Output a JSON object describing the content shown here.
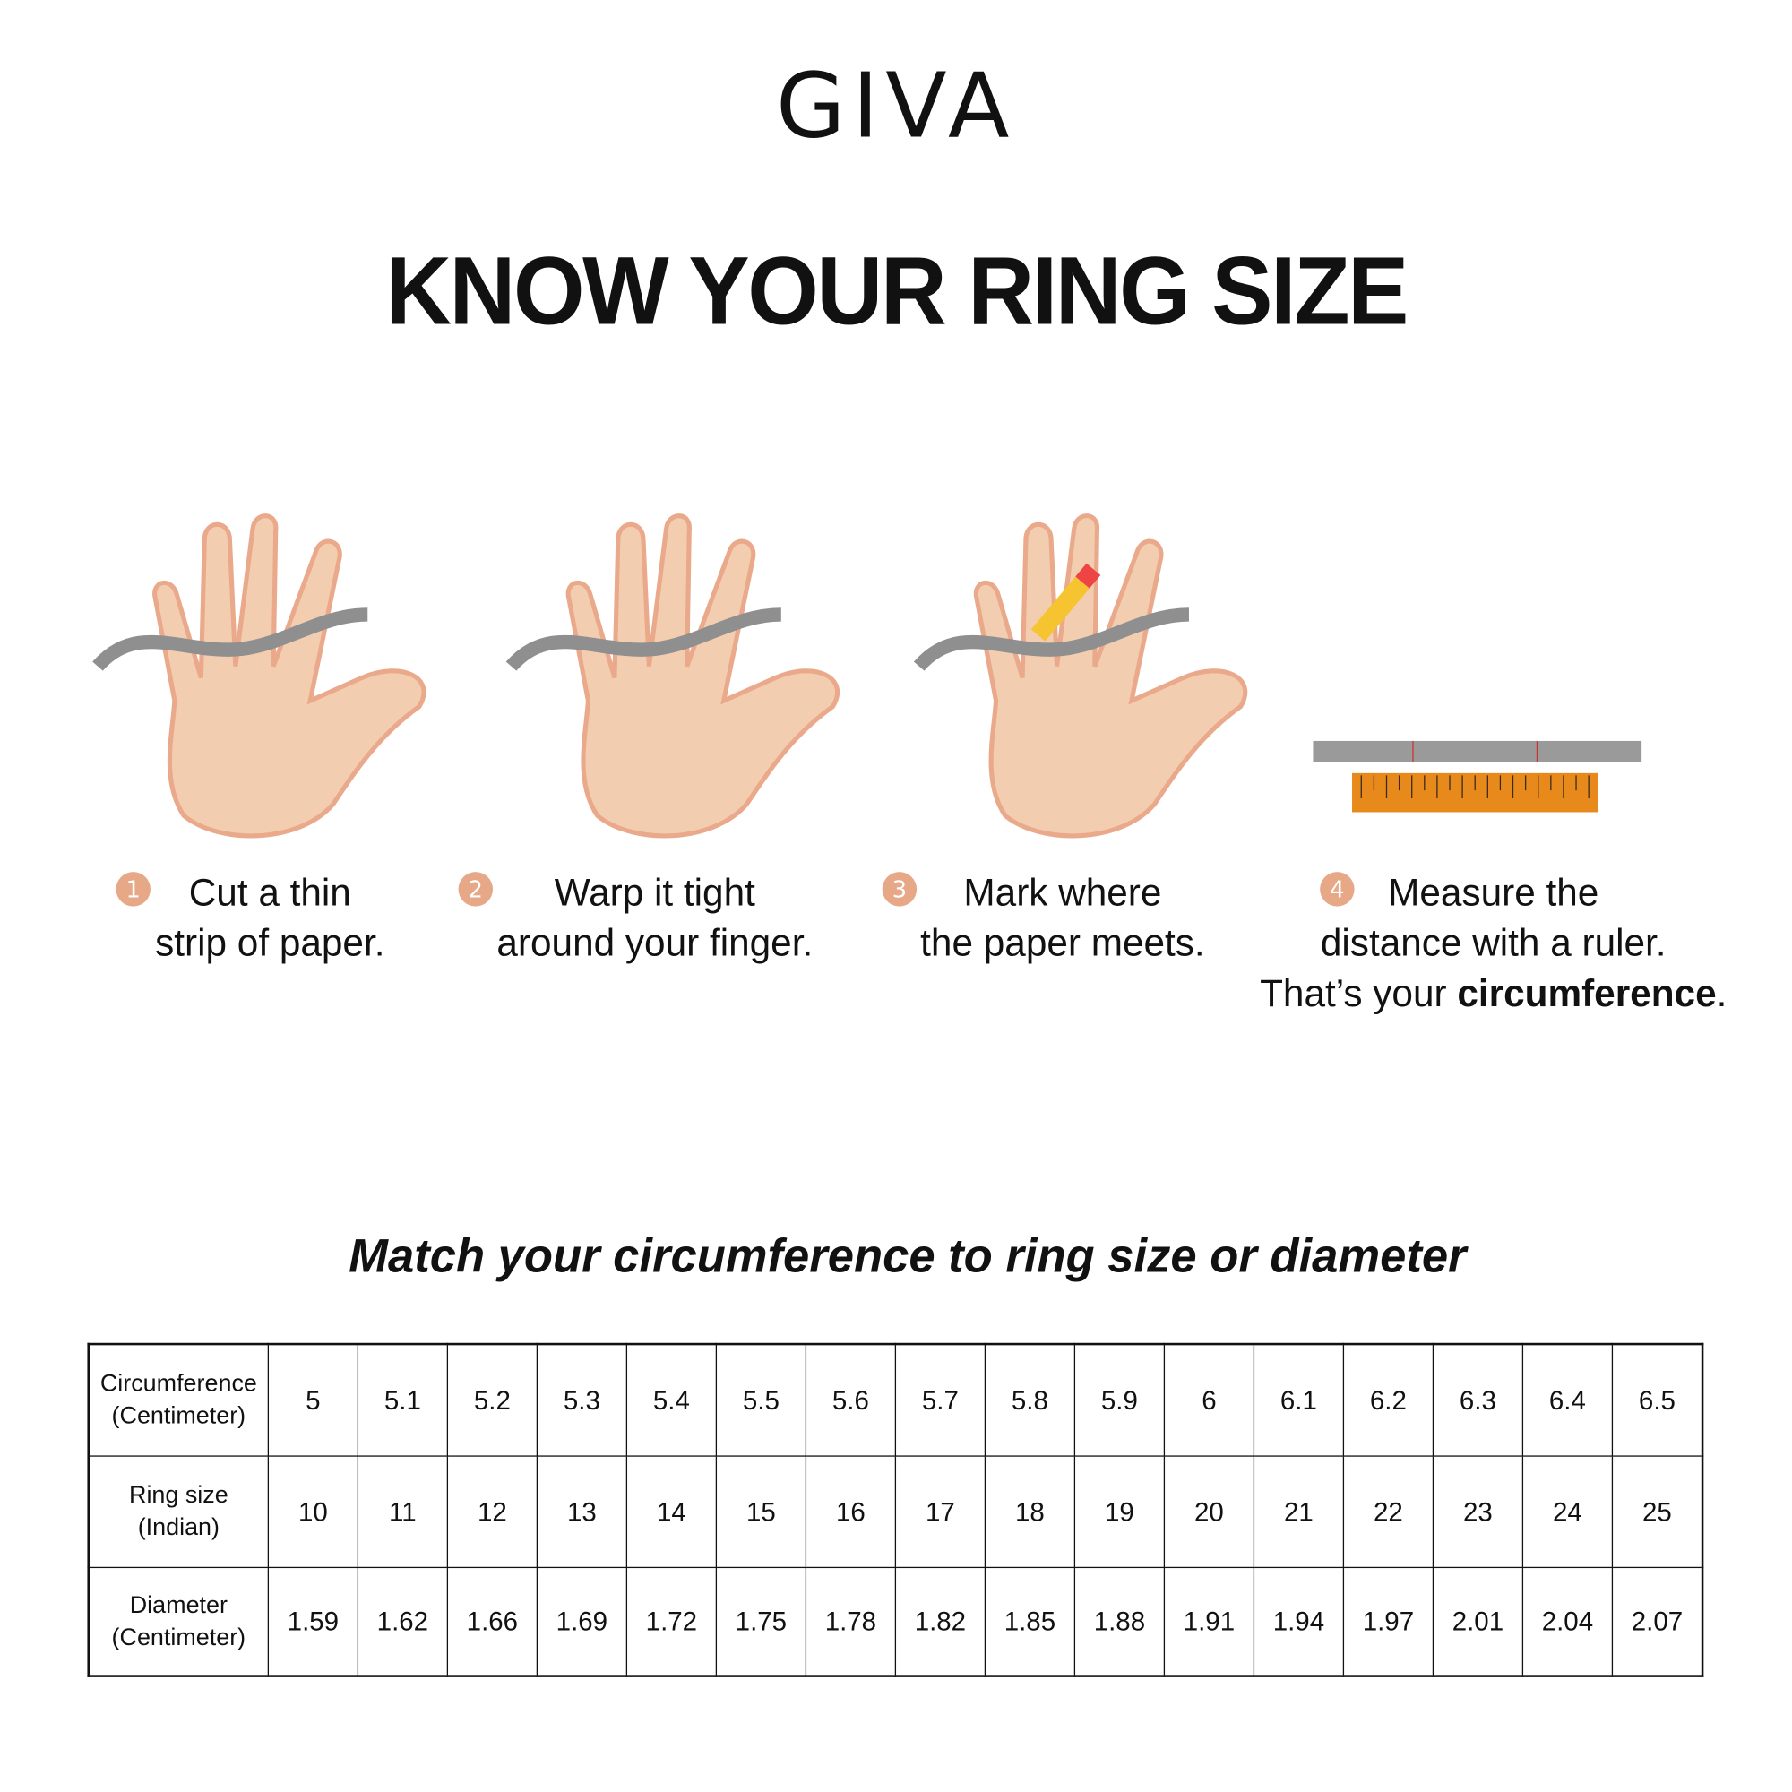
{
  "brand": "GIVA",
  "title": "KNOW YOUR RING SIZE",
  "steps": [
    {
      "number": "1",
      "line1": "Cut a thin",
      "line2": "strip of paper."
    },
    {
      "number": "2",
      "line1": "Warp it tight",
      "line2": "around your finger."
    },
    {
      "number": "3",
      "line1": "Mark where",
      "line2": "the paper meets."
    },
    {
      "number": "4",
      "line1": "Measure the",
      "line2": "distance with a ruler.",
      "line3_prefix": "That’s your ",
      "line3_bold": "circumference",
      "line3_suffix": "."
    }
  ],
  "colors": {
    "step_badge": "#e7a887",
    "skin": "#f3cdb0",
    "paper": "#8f8f8f",
    "ruler": "#e8891c"
  },
  "subtitle": "Match your circumference to ring size or diameter",
  "table": {
    "rows": [
      {
        "label1": "Circumference",
        "label2": "(Centimeter)",
        "values": [
          "5",
          "5.1",
          "5.2",
          "5.3",
          "5.4",
          "5.5",
          "5.6",
          "5.7",
          "5.8",
          "5.9",
          "6",
          "6.1",
          "6.2",
          "6.3",
          "6.4",
          "6.5"
        ]
      },
      {
        "label1": "Ring size",
        "label2": "(Indian)",
        "values": [
          "10",
          "11",
          "12",
          "13",
          "14",
          "15",
          "16",
          "17",
          "18",
          "19",
          "20",
          "21",
          "22",
          "23",
          "24",
          "25"
        ]
      },
      {
        "label1": "Diameter",
        "label2": "(Centimeter)",
        "values": [
          "1.59",
          "1.62",
          "1.66",
          "1.69",
          "1.72",
          "1.75",
          "1.78",
          "1.82",
          "1.85",
          "1.88",
          "1.91",
          "1.94",
          "1.97",
          "2.01",
          "2.04",
          "2.07"
        ]
      }
    ]
  }
}
